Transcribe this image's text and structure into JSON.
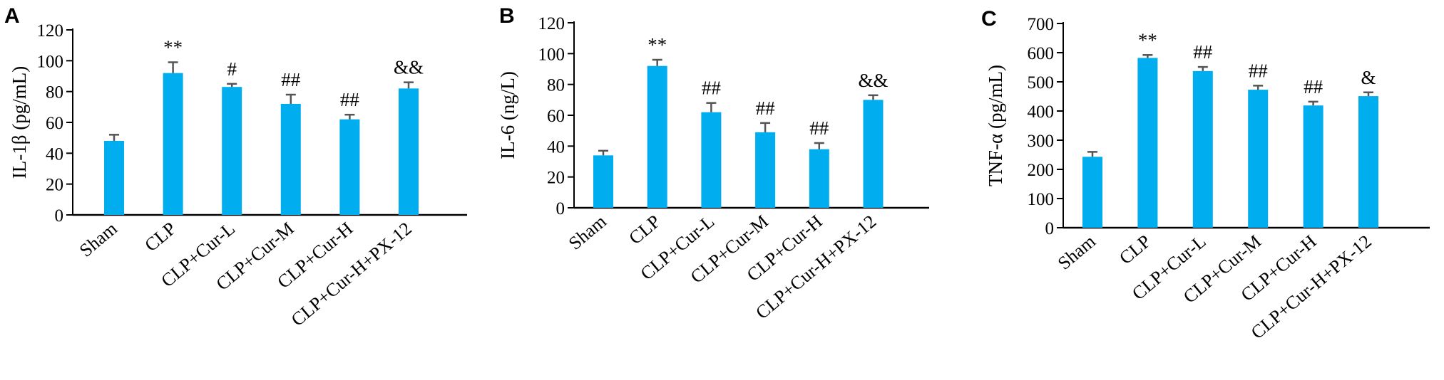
{
  "chart_data": [
    {
      "type": "bar",
      "panel": "A",
      "categories": [
        "Sham",
        "CLP",
        "CLP+Cur-L",
        "CLP+Cur-M",
        "CLP+Cur-H",
        "CLP+Cur-H+PX-12"
      ],
      "values": [
        48,
        92,
        83,
        72,
        62,
        82
      ],
      "errors": [
        4,
        7,
        2,
        6,
        3,
        4
      ],
      "annotations": [
        "",
        "**",
        "#",
        "##",
        "##",
        "&&"
      ],
      "ylabel": "IL-1β (pg/mL)",
      "ylim": [
        0,
        120
      ],
      "yticks": [
        0,
        20,
        40,
        60,
        80,
        100,
        120
      ],
      "bar_color": "#00aeef",
      "grid": false
    },
    {
      "type": "bar",
      "panel": "B",
      "categories": [
        "Sham",
        "CLP",
        "CLP+Cur-L",
        "CLP+Cur-M",
        "CLP+Cur-H",
        "CLP+Cur-H+PX-12"
      ],
      "values": [
        34,
        92,
        62,
        49,
        38,
        70
      ],
      "errors": [
        3,
        4,
        6,
        6,
        4,
        3
      ],
      "annotations": [
        "",
        "**",
        "##",
        "##",
        "##",
        "&&"
      ],
      "ylabel": "IL-6 (ng/L)",
      "ylim": [
        0,
        120
      ],
      "yticks": [
        0,
        20,
        40,
        60,
        80,
        100,
        120
      ],
      "bar_color": "#00aeef",
      "grid": false
    },
    {
      "type": "bar",
      "panel": "C",
      "categories": [
        "Sham",
        "CLP",
        "CLP+Cur-L",
        "CLP+Cur-M",
        "CLP+Cur-H",
        "CLP+Cur-H+PX-12"
      ],
      "values": [
        243,
        582,
        537,
        473,
        419,
        451
      ],
      "errors": [
        17,
        10,
        14,
        14,
        13,
        13
      ],
      "annotations": [
        "",
        "**",
        "##",
        "##",
        "##",
        "&"
      ],
      "ylabel": "TNF-α (pg/mL)",
      "ylim": [
        0,
        700
      ],
      "yticks": [
        0,
        100,
        200,
        300,
        400,
        500,
        600,
        700
      ],
      "bar_color": "#00aeef",
      "grid": false
    }
  ]
}
